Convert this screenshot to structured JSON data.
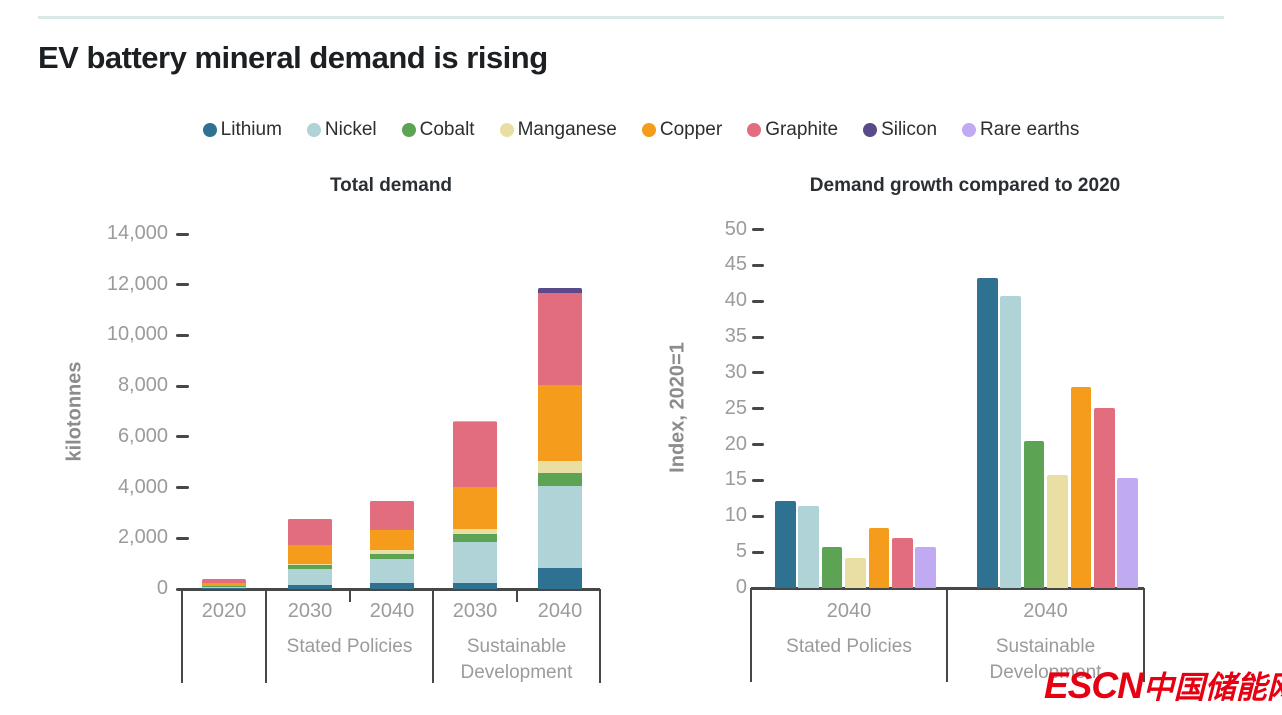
{
  "header": {
    "title": "EV battery mineral demand is rising"
  },
  "legend": {
    "items": [
      {
        "name": "Lithium",
        "color": "#2e7190"
      },
      {
        "name": "Nickel",
        "color": "#afd3d6"
      },
      {
        "name": "Cobalt",
        "color": "#5ca453"
      },
      {
        "name": "Manganese",
        "color": "#eadfa2"
      },
      {
        "name": "Copper",
        "color": "#f59c1c"
      },
      {
        "name": "Graphite",
        "color": "#e26d7f"
      },
      {
        "name": "Silicon",
        "color": "#5a4a8a"
      },
      {
        "name": "Rare earths",
        "color": "#c0aaf2"
      }
    ]
  },
  "chart_data": [
    {
      "type": "bar",
      "subtype": "stacked",
      "title": "Total demand",
      "ylabel": "kilotonnes",
      "ylim": [
        0,
        14000
      ],
      "yticks": [
        0,
        2000,
        4000,
        6000,
        8000,
        10000,
        12000,
        14000
      ],
      "ytick_labels": [
        "0",
        "2,000",
        "4,000",
        "6,000",
        "8,000",
        "10,000",
        "12,000",
        "14,000"
      ],
      "grid": false,
      "groups": [
        {
          "group_label": "",
          "years": [
            "2020"
          ]
        },
        {
          "group_label": "Stated Policies",
          "years": [
            "2030",
            "2040"
          ]
        },
        {
          "group_label": "Sustainable Development",
          "years": [
            "2030",
            "2040"
          ]
        }
      ],
      "categories": [
        "2020",
        "2030 Stated Policies",
        "2040 Stated Policies",
        "2030 Sustainable Development",
        "2040 Sustainable Development"
      ],
      "series": [
        {
          "name": "Lithium",
          "color": "#2e7190",
          "values": [
            20,
            170,
            225,
            225,
            830
          ]
        },
        {
          "name": "Nickel",
          "color": "#afd3d6",
          "values": [
            70,
            630,
            960,
            1620,
            3250
          ]
        },
        {
          "name": "Cobalt",
          "color": "#5ca453",
          "values": [
            20,
            130,
            195,
            330,
            490
          ]
        },
        {
          "name": "Manganese",
          "color": "#eadfa2",
          "values": [
            20,
            40,
            140,
            200,
            470
          ]
        },
        {
          "name": "Copper",
          "color": "#f59c1c",
          "values": [
            115,
            750,
            815,
            1640,
            3020
          ]
        },
        {
          "name": "Graphite",
          "color": "#e26d7f",
          "values": [
            150,
            1040,
            1120,
            2560,
            3600
          ]
        },
        {
          "name": "Silicon",
          "color": "#5a4a8a",
          "values": [
            3,
            10,
            15,
            30,
            210
          ]
        },
        {
          "name": "Rare earths",
          "color": "#c0aaf2",
          "values": [
            2,
            5,
            10,
            15,
            20
          ]
        }
      ]
    },
    {
      "type": "bar",
      "subtype": "grouped",
      "title": "Demand growth compared to 2020",
      "ylabel": "Index, 2020=1",
      "ylim": [
        0,
        50
      ],
      "yticks": [
        0,
        5,
        10,
        15,
        20,
        25,
        30,
        35,
        40,
        45,
        50
      ],
      "ytick_labels": [
        "0",
        "5",
        "10",
        "15",
        "20",
        "25",
        "30",
        "35",
        "40",
        "45",
        "50"
      ],
      "grid": false,
      "groups": [
        {
          "group_label": "Stated Policies",
          "years": [
            "2040"
          ]
        },
        {
          "group_label": "Sustainable Development",
          "years": [
            "2040"
          ]
        }
      ],
      "categories": [
        "2040 Stated Policies",
        "2040 Sustainable Development"
      ],
      "series": [
        {
          "name": "Lithium",
          "color": "#2e7190",
          "values": [
            12.2,
            43.2
          ]
        },
        {
          "name": "Nickel",
          "color": "#afd3d6",
          "values": [
            11.4,
            40.7
          ]
        },
        {
          "name": "Cobalt",
          "color": "#5ca453",
          "values": [
            5.7,
            20.5
          ]
        },
        {
          "name": "Manganese",
          "color": "#eadfa2",
          "values": [
            4.2,
            15.7
          ]
        },
        {
          "name": "Copper",
          "color": "#f59c1c",
          "values": [
            8.3,
            28.1
          ]
        },
        {
          "name": "Graphite",
          "color": "#e26d7f",
          "values": [
            7.0,
            25.1
          ]
        },
        {
          "name": "Rare earths",
          "color": "#c0aaf2",
          "values": [
            5.7,
            15.3
          ]
        }
      ]
    }
  ],
  "watermark": {
    "latin": "ESCN",
    "cjk": "中国储能网"
  }
}
